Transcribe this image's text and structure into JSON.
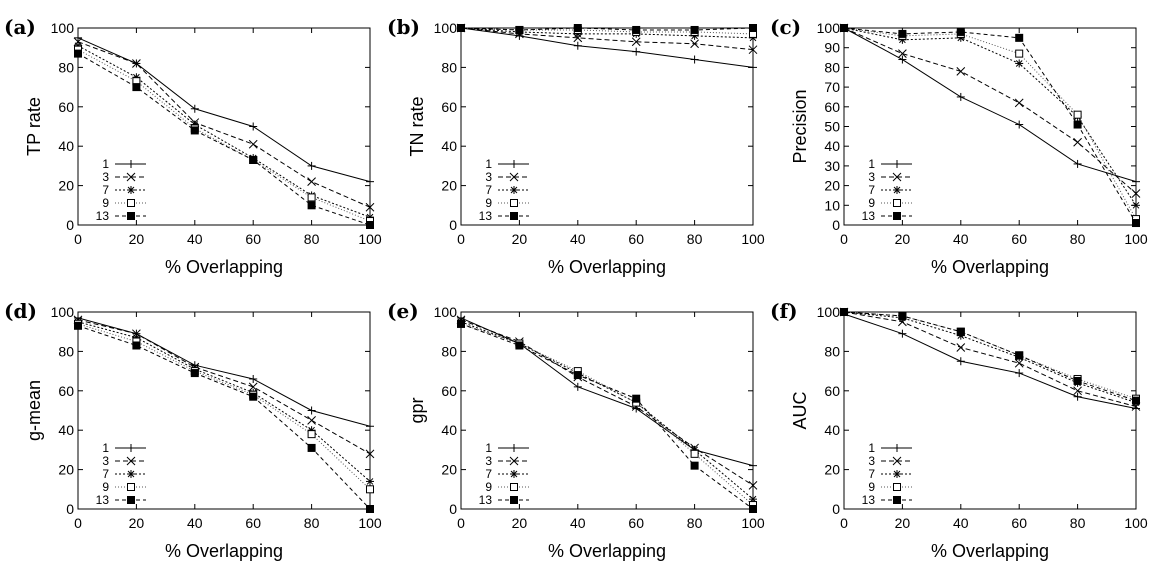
{
  "chart_data": [
    {
      "type": "line",
      "panel": "(a)",
      "xlabel": "% Overlapping",
      "ylabel": "TP rate",
      "x": [
        0,
        20,
        40,
        60,
        80,
        100
      ],
      "xticks": [
        0,
        20,
        40,
        60,
        80,
        100
      ],
      "ylim": [
        0,
        100
      ],
      "yticks": [
        0,
        20,
        40,
        60,
        80,
        100
      ],
      "grid": false,
      "legend_position": "bottom-left",
      "series": [
        {
          "name": "1",
          "values": [
            95,
            82,
            59,
            50,
            30,
            22
          ]
        },
        {
          "name": "3",
          "values": [
            93,
            82,
            52,
            41,
            22,
            9
          ]
        },
        {
          "name": "7",
          "values": [
            91,
            75,
            51,
            34,
            15,
            4
          ]
        },
        {
          "name": "9",
          "values": [
            89,
            73,
            49,
            33,
            14,
            2
          ]
        },
        {
          "name": "13",
          "values": [
            87,
            70,
            48,
            33,
            10,
            0
          ]
        }
      ]
    },
    {
      "type": "line",
      "panel": "(b)",
      "xlabel": "% Overlapping",
      "ylabel": "TN rate",
      "x": [
        0,
        20,
        40,
        60,
        80,
        100
      ],
      "xticks": [
        0,
        20,
        40,
        60,
        80,
        100
      ],
      "ylim": [
        0,
        100
      ],
      "yticks": [
        0,
        20,
        40,
        60,
        80,
        100
      ],
      "grid": false,
      "legend_position": "bottom-left",
      "series": [
        {
          "name": "1",
          "values": [
            100,
            96,
            91,
            88,
            84,
            80
          ]
        },
        {
          "name": "3",
          "values": [
            100,
            97,
            95,
            93,
            92,
            89
          ]
        },
        {
          "name": "7",
          "values": [
            100,
            98,
            97,
            97,
            96,
            95
          ]
        },
        {
          "name": "9",
          "values": [
            100,
            99,
            99,
            98,
            98,
            97
          ]
        },
        {
          "name": "13",
          "values": [
            100,
            99,
            100,
            99,
            99,
            100
          ]
        }
      ]
    },
    {
      "type": "line",
      "panel": "(c)",
      "xlabel": "% Overlapping",
      "ylabel": "Precision",
      "x": [
        0,
        20,
        40,
        60,
        80,
        100
      ],
      "xticks": [
        0,
        20,
        40,
        60,
        80,
        100
      ],
      "ylim": [
        0,
        100
      ],
      "yticks": [
        0,
        10,
        20,
        30,
        40,
        50,
        60,
        70,
        80,
        90,
        100
      ],
      "grid": false,
      "legend_position": "bottom-left",
      "series": [
        {
          "name": "1",
          "values": [
            100,
            84,
            65,
            51,
            31,
            22
          ]
        },
        {
          "name": "3",
          "values": [
            100,
            87,
            78,
            62,
            42,
            16
          ]
        },
        {
          "name": "7",
          "values": [
            100,
            94,
            95,
            82,
            55,
            10
          ]
        },
        {
          "name": "9",
          "values": [
            100,
            96,
            97,
            87,
            56,
            3
          ]
        },
        {
          "name": "13",
          "values": [
            100,
            97,
            98,
            95,
            51,
            1
          ]
        }
      ]
    },
    {
      "type": "line",
      "panel": "(d)",
      "xlabel": "% Overlapping",
      "ylabel": "g-mean",
      "x": [
        0,
        20,
        40,
        60,
        80,
        100
      ],
      "xticks": [
        0,
        20,
        40,
        60,
        80,
        100
      ],
      "ylim": [
        0,
        100
      ],
      "yticks": [
        0,
        20,
        40,
        60,
        80,
        100
      ],
      "grid": false,
      "legend_position": "bottom-left",
      "series": [
        {
          "name": "1",
          "values": [
            97,
            89,
            73,
            66,
            50,
            42
          ]
        },
        {
          "name": "3",
          "values": [
            96,
            89,
            72,
            62,
            45,
            28
          ]
        },
        {
          "name": "7",
          "values": [
            95,
            87,
            71,
            59,
            40,
            14
          ]
        },
        {
          "name": "9",
          "values": [
            94,
            85,
            70,
            58,
            38,
            10
          ]
        },
        {
          "name": "13",
          "values": [
            93,
            83,
            69,
            57,
            31,
            0
          ]
        }
      ]
    },
    {
      "type": "line",
      "panel": "(e)",
      "xlabel": "% Overlapping",
      "ylabel": "gpr",
      "x": [
        0,
        20,
        40,
        60,
        80,
        100
      ],
      "xticks": [
        0,
        20,
        40,
        60,
        80,
        100
      ],
      "ylim": [
        0,
        100
      ],
      "yticks": [
        0,
        20,
        40,
        60,
        80,
        100
      ],
      "grid": false,
      "legend_position": "bottom-left",
      "series": [
        {
          "name": "1",
          "values": [
            97,
            84,
            62,
            51,
            30,
            22
          ]
        },
        {
          "name": "3",
          "values": [
            96,
            85,
            67,
            52,
            31,
            12
          ]
        },
        {
          "name": "7",
          "values": [
            95,
            84,
            69,
            54,
            30,
            5
          ]
        },
        {
          "name": "9",
          "values": [
            94,
            84,
            70,
            54,
            28,
            2
          ]
        },
        {
          "name": "13",
          "values": [
            94,
            83,
            68,
            56,
            22,
            0
          ]
        }
      ]
    },
    {
      "type": "line",
      "panel": "(f)",
      "xlabel": "% Overlapping",
      "ylabel": "AUC",
      "x": [
        0,
        20,
        40,
        60,
        80,
        100
      ],
      "xticks": [
        0,
        20,
        40,
        60,
        80,
        100
      ],
      "ylim": [
        0,
        100
      ],
      "yticks": [
        0,
        20,
        40,
        60,
        80,
        100
      ],
      "grid": false,
      "legend_position": "bottom-left",
      "series": [
        {
          "name": "1",
          "values": [
            99,
            89,
            75,
            69,
            57,
            51
          ]
        },
        {
          "name": "3",
          "values": [
            100,
            95,
            82,
            74,
            60,
            52
          ]
        },
        {
          "name": "7",
          "values": [
            100,
            97,
            88,
            77,
            64,
            54
          ]
        },
        {
          "name": "9",
          "values": [
            100,
            98,
            90,
            78,
            66,
            56
          ]
        },
        {
          "name": "13",
          "values": [
            100,
            98,
            90,
            78,
            65,
            55
          ]
        }
      ]
    }
  ]
}
